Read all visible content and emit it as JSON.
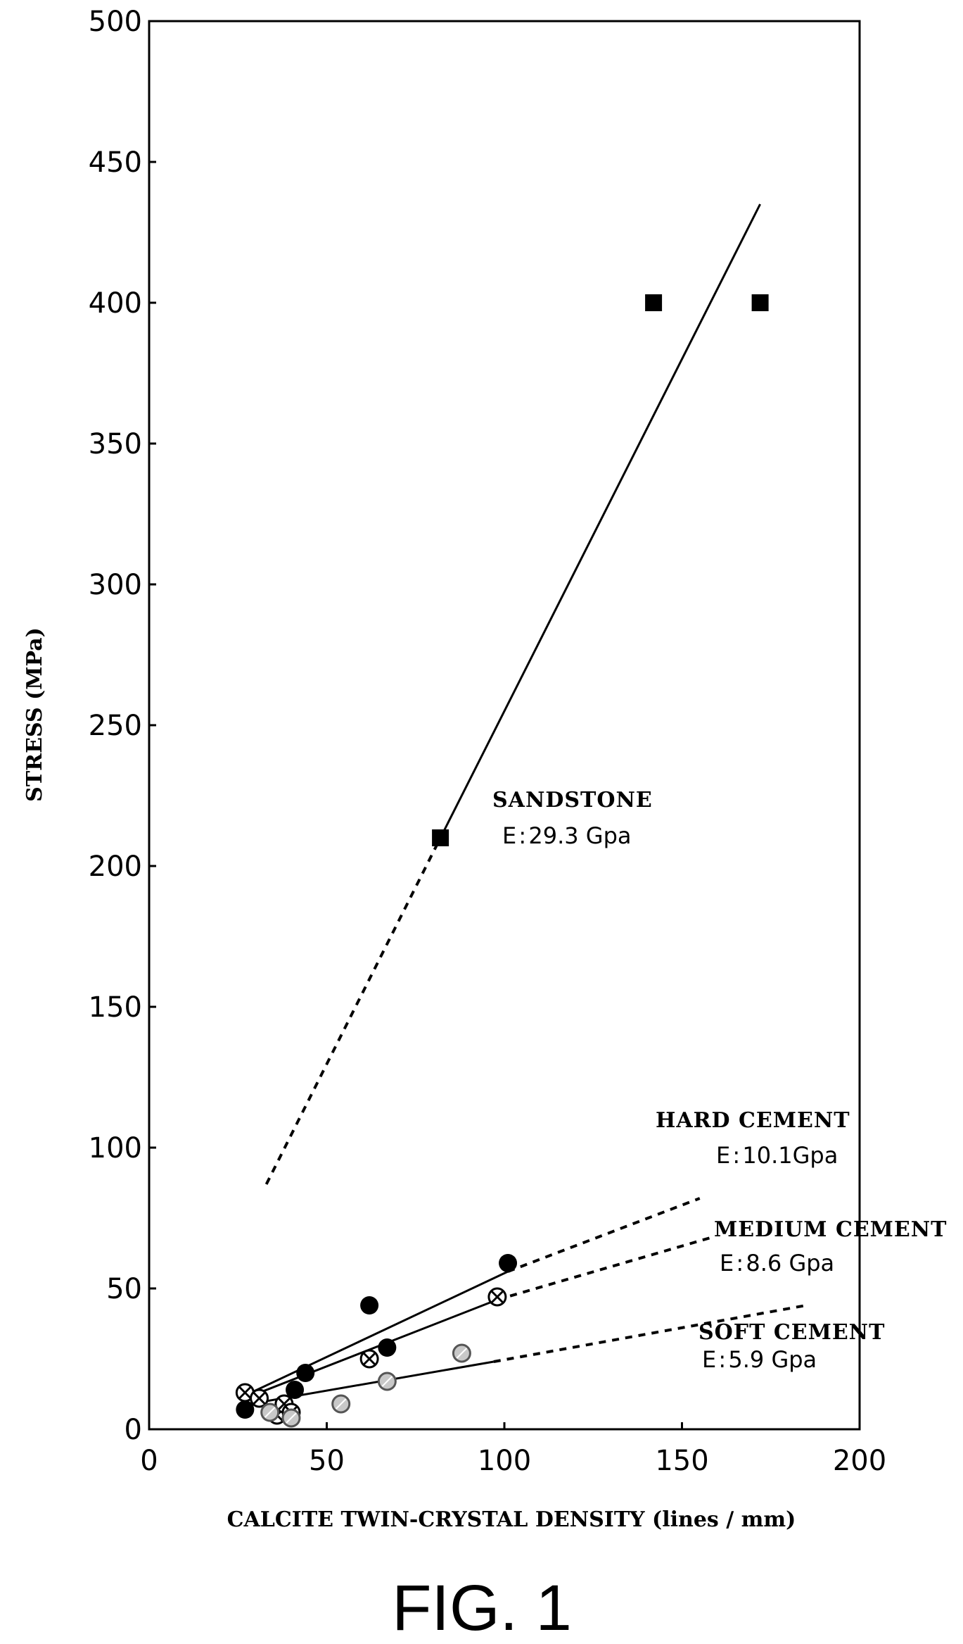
{
  "figure_label": "FIG. 1",
  "chart_data": {
    "type": "scatter",
    "title": "",
    "xlabel": "CALCITE TWIN-CRYSTAL DENSITY (lines / mm)",
    "ylabel": "STRESS (MPa)",
    "xlim": [
      0,
      200
    ],
    "ylim": [
      0,
      500
    ],
    "x_ticks": [
      "0",
      "50",
      "100",
      "150",
      "200"
    ],
    "y_ticks": [
      "0",
      "50",
      "100",
      "150",
      "200",
      "250",
      "300",
      "350",
      "400",
      "450",
      "500"
    ],
    "grid": false,
    "series": [
      {
        "name": "SANDSTONE",
        "modulus": "E : 29.3 Gpa",
        "marker": "filled-square",
        "points": [
          [
            82,
            210
          ],
          [
            142,
            400
          ],
          [
            172,
            400
          ]
        ],
        "fit_solid": [
          [
            82,
            210
          ],
          [
            172,
            435
          ]
        ],
        "fit_dashed": [
          [
            33,
            87
          ],
          [
            82,
            210
          ]
        ]
      },
      {
        "name": "HARD CEMENT",
        "modulus": "E : 10.1Gpa",
        "marker": "filled-circle",
        "points": [
          [
            27,
            7
          ],
          [
            41,
            14
          ],
          [
            44,
            20
          ],
          [
            62,
            44
          ],
          [
            67,
            29
          ],
          [
            101,
            59
          ]
        ],
        "fit_solid": [
          [
            27,
            12
          ],
          [
            101,
            56
          ]
        ],
        "fit_dashed": [
          [
            101,
            56
          ],
          [
            155,
            82
          ]
        ]
      },
      {
        "name": "MEDIUM CEMENT",
        "modulus": "E : 8.6 Gpa",
        "marker": "crossed-circle",
        "points": [
          [
            27,
            13
          ],
          [
            31,
            11
          ],
          [
            36,
            5
          ],
          [
            38,
            9
          ],
          [
            40,
            6
          ],
          [
            62,
            25
          ],
          [
            98,
            47
          ]
        ],
        "fit_solid": [
          [
            27,
            11
          ],
          [
            98,
            46
          ]
        ],
        "fit_dashed": [
          [
            98,
            46
          ],
          [
            158,
            68
          ]
        ]
      },
      {
        "name": "SOFT CEMENT",
        "modulus": "E : 5.9 Gpa",
        "marker": "hatched-circle",
        "points": [
          [
            34,
            6
          ],
          [
            40,
            4
          ],
          [
            54,
            9
          ],
          [
            67,
            17
          ],
          [
            88,
            27
          ]
        ],
        "fit_solid": [
          [
            33,
            10
          ],
          [
            97,
            24
          ]
        ],
        "fit_dashed": [
          [
            97,
            24
          ],
          [
            185,
            44
          ]
        ]
      }
    ]
  }
}
